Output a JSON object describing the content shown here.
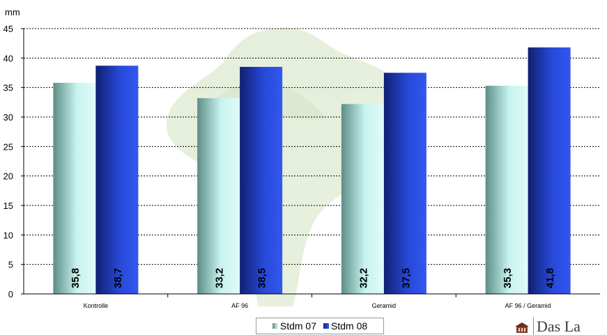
{
  "chart_data": {
    "type": "bar",
    "ylabel": "mm",
    "ylim": [
      0,
      45
    ],
    "yticks": [
      0,
      5,
      10,
      15,
      20,
      25,
      30,
      35,
      40,
      45
    ],
    "grid": true,
    "legend_position": "bottom",
    "categories": [
      "Kontrolle",
      "AF 96",
      "Geramid",
      "AF 96 / Geramid"
    ],
    "series": [
      {
        "name": "Stdm 07",
        "values": [
          35.8,
          33.2,
          32.2,
          35.3
        ],
        "labels": [
          "35,8",
          "33,2",
          "32,2",
          "35,3"
        ],
        "color": "#bff0ec"
      },
      {
        "name": "Stdm 08",
        "values": [
          38.7,
          38.5,
          37.5,
          41.8
        ],
        "labels": [
          "38,7",
          "38,5",
          "37,5",
          "41,8"
        ],
        "color": "#2442c8"
      }
    ]
  },
  "logo": {
    "text": "Das La"
  }
}
